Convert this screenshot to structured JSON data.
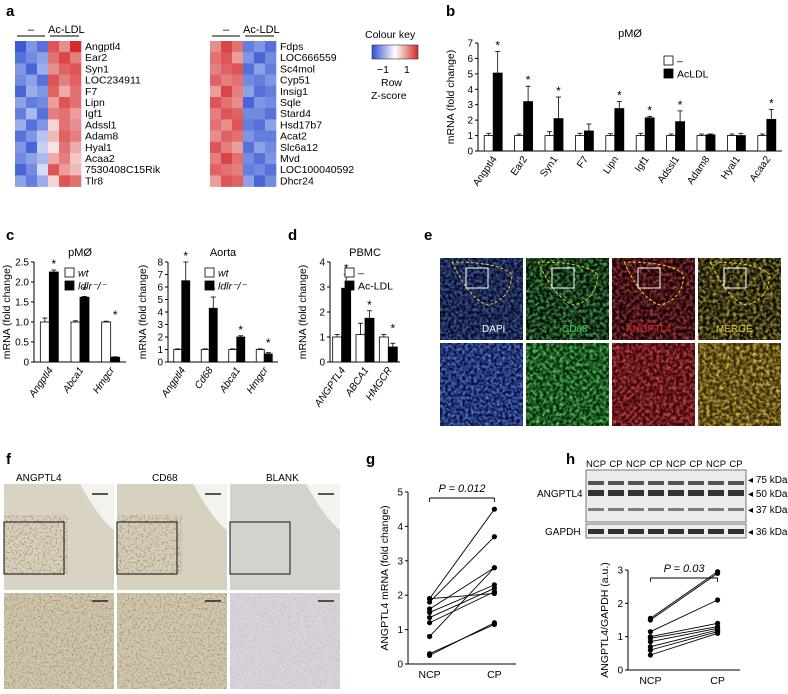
{
  "panel_letters": [
    "a",
    "b",
    "c",
    "d",
    "e",
    "f",
    "g",
    "h"
  ],
  "panel_a": {
    "heatmap1": {
      "group_labels": [
        "–",
        "Ac-LDL"
      ],
      "genes": [
        "Angptl4",
        "Ear2",
        "Syn1",
        "LOC234911",
        "F7",
        "Lipn",
        "Igf1",
        "Adssl1",
        "Adam8",
        "Hyal1",
        "Acaa2",
        "7530408C15Rik",
        "Tlr8"
      ],
      "cells": [
        [
          -1.4,
          -0.9,
          -1.2,
          1.2,
          0.8,
          1.5
        ],
        [
          -1.2,
          -1.0,
          -0.8,
          1.0,
          1.3,
          0.9
        ],
        [
          -0.9,
          -1.3,
          -0.7,
          0.8,
          1.1,
          1.2
        ],
        [
          -1.0,
          -0.8,
          -1.2,
          1.2,
          0.9,
          1.1
        ],
        [
          -1.3,
          -0.7,
          -0.9,
          1.1,
          0.6,
          1.0
        ],
        [
          -0.8,
          -1.1,
          -1.0,
          0.7,
          1.2,
          1.0
        ],
        [
          -1.1,
          -0.6,
          -1.2,
          0.9,
          1.0,
          0.7
        ],
        [
          -0.7,
          -1.2,
          -0.9,
          0.3,
          1.0,
          0.8
        ],
        [
          -1.2,
          -0.9,
          -0.5,
          0.5,
          1.1,
          0.9
        ],
        [
          -0.9,
          -1.3,
          -0.4,
          0.2,
          1.0,
          0.6
        ],
        [
          -1.0,
          -0.8,
          -0.6,
          0.6,
          0.9,
          0.4
        ],
        [
          -1.3,
          -1.0,
          -0.3,
          1.2,
          0.7,
          0.5
        ],
        [
          -0.8,
          -1.1,
          -0.7,
          0.3,
          1.2,
          1.0
        ]
      ]
    },
    "heatmap2": {
      "group_labels": [
        "–",
        "Ac-LDL"
      ],
      "genes": [
        "Fdps",
        "LOC666559",
        "Sc4mol",
        "Cyp51",
        "Insig1",
        "Sqle",
        "Stard4",
        "Hsd17b7",
        "Acat2",
        "Slc6a12",
        "Mvd",
        "LOC100040592",
        "Dhcr24"
      ],
      "cells": [
        [
          0.8,
          1.3,
          1.0,
          -1.1,
          -0.9,
          -1.2
        ],
        [
          1.0,
          1.2,
          0.7,
          -0.9,
          -1.3,
          -1.0
        ],
        [
          0.9,
          1.1,
          1.2,
          -1.2,
          -0.8,
          -1.1
        ],
        [
          1.1,
          0.9,
          1.0,
          -1.0,
          -1.1,
          -0.9
        ],
        [
          0.7,
          1.3,
          0.9,
          -0.8,
          -1.2,
          -1.1
        ],
        [
          1.2,
          1.0,
          0.8,
          -1.3,
          -0.9,
          -1.0
        ],
        [
          0.9,
          1.2,
          1.1,
          -1.0,
          -1.0,
          -1.2
        ],
        [
          1.0,
          0.8,
          1.2,
          -1.1,
          -1.2,
          -0.8
        ],
        [
          0.8,
          1.1,
          1.0,
          -0.9,
          -1.1,
          -1.1
        ],
        [
          1.2,
          0.9,
          0.7,
          -1.2,
          -0.8,
          -1.0
        ],
        [
          0.9,
          1.3,
          1.0,
          -1.0,
          -1.2,
          -0.9
        ],
        [
          1.1,
          1.0,
          0.9,
          -1.1,
          -1.0,
          -1.2
        ],
        [
          0.7,
          1.2,
          1.1,
          -0.8,
          -1.3,
          -1.0
        ]
      ]
    },
    "colour_key": {
      "title": "Colour key",
      "ticks": [
        "−1",
        "1"
      ],
      "label_line1": "Row",
      "label_line2": "Z-score"
    }
  },
  "panel_b": {
    "title": "pMØ",
    "ylabel": "mRNA (fold change)",
    "ylim": [
      0,
      7
    ],
    "yticks": [
      "0",
      "1",
      "2",
      "3",
      "4",
      "5",
      "6",
      "7"
    ],
    "legend": [
      "–",
      "AcLDL"
    ],
    "chart_data": {
      "type": "bar",
      "categories": [
        "Angptl4",
        "Ear2",
        "Syn1",
        "F7",
        "Lipn",
        "Igf1",
        "Adssl1",
        "Adam8",
        "Hyal1",
        "Acaa2"
      ],
      "series": [
        {
          "name": "–",
          "values": [
            1.0,
            1.0,
            1.0,
            1.0,
            1.0,
            1.0,
            1.0,
            1.0,
            1.0,
            1.0
          ],
          "errors": [
            0.15,
            0.1,
            0.25,
            0.15,
            0.12,
            0.15,
            0.1,
            0.1,
            0.1,
            0.1
          ]
        },
        {
          "name": "AcLDL",
          "values": [
            5.05,
            3.2,
            2.1,
            1.3,
            2.75,
            2.15,
            1.9,
            1.05,
            1.0,
            2.05
          ],
          "errors": [
            1.4,
            1.0,
            1.4,
            0.45,
            0.45,
            0.1,
            0.7,
            0.05,
            0.15,
            0.65
          ]
        }
      ],
      "significant": [
        true,
        true,
        true,
        false,
        true,
        true,
        true,
        false,
        false,
        true
      ]
    }
  },
  "panel_c": {
    "left": {
      "title": "pMØ",
      "ylabel": "mRNA (fold change)",
      "ylim": [
        0,
        2.5
      ],
      "yticks": [
        "0",
        "0.5",
        "1.0",
        "1.5",
        "2.0",
        "2.5"
      ],
      "legend": [
        "wt",
        "ldlr⁻/⁻"
      ],
      "chart_data": {
        "type": "bar",
        "categories": [
          "Angptl4",
          "Abca1",
          "Hmgcr"
        ],
        "series": [
          {
            "name": "wt",
            "values": [
              1.0,
              1.0,
              1.0
            ],
            "errors": [
              0.1,
              0.03,
              0.02
            ]
          },
          {
            "name": "ldlr⁻/⁻",
            "values": [
              2.25,
              1.62,
              0.12
            ],
            "errors": [
              0.05,
              0.02,
              0.01
            ]
          }
        ],
        "significant": [
          true,
          true,
          true
        ]
      }
    },
    "right": {
      "title": "Aorta",
      "ylabel": "mRNA (fold change)",
      "ylim": [
        0,
        8
      ],
      "yticks": [
        "0",
        "1",
        "2",
        "3",
        "4",
        "5",
        "6",
        "7",
        "8"
      ],
      "legend": [
        "wt",
        "ldlr⁻/⁻"
      ],
      "chart_data": {
        "type": "bar",
        "categories": [
          "Angptl4",
          "Cd68",
          "Abca1",
          "Hmgcr"
        ],
        "series": [
          {
            "name": "wt",
            "values": [
              1.0,
              1.0,
              1.0,
              1.0
            ],
            "errors": [
              0.05,
              0.05,
              0.05,
              0.05
            ]
          },
          {
            "name": "ldlr⁻/⁻",
            "values": [
              6.5,
              4.3,
              2.0,
              0.65
            ],
            "errors": [
              1.5,
              0.9,
              0.1,
              0.1
            ]
          }
        ],
        "significant": [
          true,
          true,
          true,
          true
        ]
      }
    }
  },
  "panel_d": {
    "title": "PBMC",
    "ylabel": "mRNA (fold change)",
    "ylim": [
      0,
      4
    ],
    "yticks": [
      "0",
      "1",
      "2",
      "3",
      "4"
    ],
    "legend": [
      "–",
      "Ac-LDL"
    ],
    "chart_data": {
      "type": "bar",
      "categories": [
        "ANGPTL4",
        "ABCA1",
        "HMGCR"
      ],
      "series": [
        {
          "name": "–",
          "values": [
            1.0,
            1.1,
            1.0
          ],
          "errors": [
            0.1,
            0.45,
            0.1
          ]
        },
        {
          "name": "Ac-LDL",
          "values": [
            2.95,
            1.75,
            0.6
          ],
          "errors": [
            0.55,
            0.3,
            0.15
          ]
        }
      ],
      "significant": [
        true,
        true,
        true
      ]
    }
  },
  "panel_e": {
    "labels": [
      "DAPI",
      "CD68",
      "ANGPTL4",
      "MERGE"
    ],
    "colors": [
      "#3a5ed6",
      "#3cd04c",
      "#e0282e",
      "#d8c040"
    ]
  },
  "panel_f": {
    "labels": [
      "ANGPTL4",
      "CD68",
      "BLANK"
    ]
  },
  "panel_g": {
    "p_value": "P = 0.012",
    "ylabel": "ANGPTL4 mRNA (fold change)",
    "ylim": [
      0,
      5
    ],
    "yticks": [
      "0",
      "1",
      "2",
      "3",
      "4",
      "5"
    ],
    "chart_data": {
      "type": "line",
      "categories": [
        "NCP",
        "CP"
      ],
      "pairs": [
        [
          1.9,
          4.5
        ],
        [
          1.8,
          3.7
        ],
        [
          1.6,
          2.8
        ],
        [
          1.5,
          2.3
        ],
        [
          1.35,
          2.2
        ],
        [
          1.2,
          2.1
        ],
        [
          0.8,
          2.8
        ],
        [
          0.3,
          1.15
        ],
        [
          0.25,
          1.2
        ],
        [
          1.9,
          2.05
        ]
      ]
    }
  },
  "panel_h": {
    "lane_labels": [
      "NCP",
      "CP",
      "NCP",
      "CP",
      "NCP",
      "CP",
      "NCP",
      "CP"
    ],
    "blot_label_top": "ANGPTL4",
    "blot_label_bottom": "GAPDH",
    "markers": [
      "75 kDa",
      "50 kDa",
      "37 kDa",
      "36 kDa"
    ],
    "p_value": "P = 0.03",
    "ylabel": "ANGPTL4/GAPDH (a.u.)",
    "ylim": [
      0,
      3
    ],
    "yticks": [
      "0",
      "1",
      "2",
      "3"
    ],
    "chart_data": {
      "type": "line",
      "categories": [
        "NCP",
        "CP"
      ],
      "pairs": [
        [
          1.55,
          2.95
        ],
        [
          1.5,
          2.9
        ],
        [
          1.15,
          2.1
        ],
        [
          1.0,
          1.4
        ],
        [
          0.95,
          1.3
        ],
        [
          0.85,
          1.25
        ],
        [
          0.7,
          1.2
        ],
        [
          0.6,
          1.15
        ],
        [
          0.45,
          1.1
        ]
      ]
    }
  }
}
